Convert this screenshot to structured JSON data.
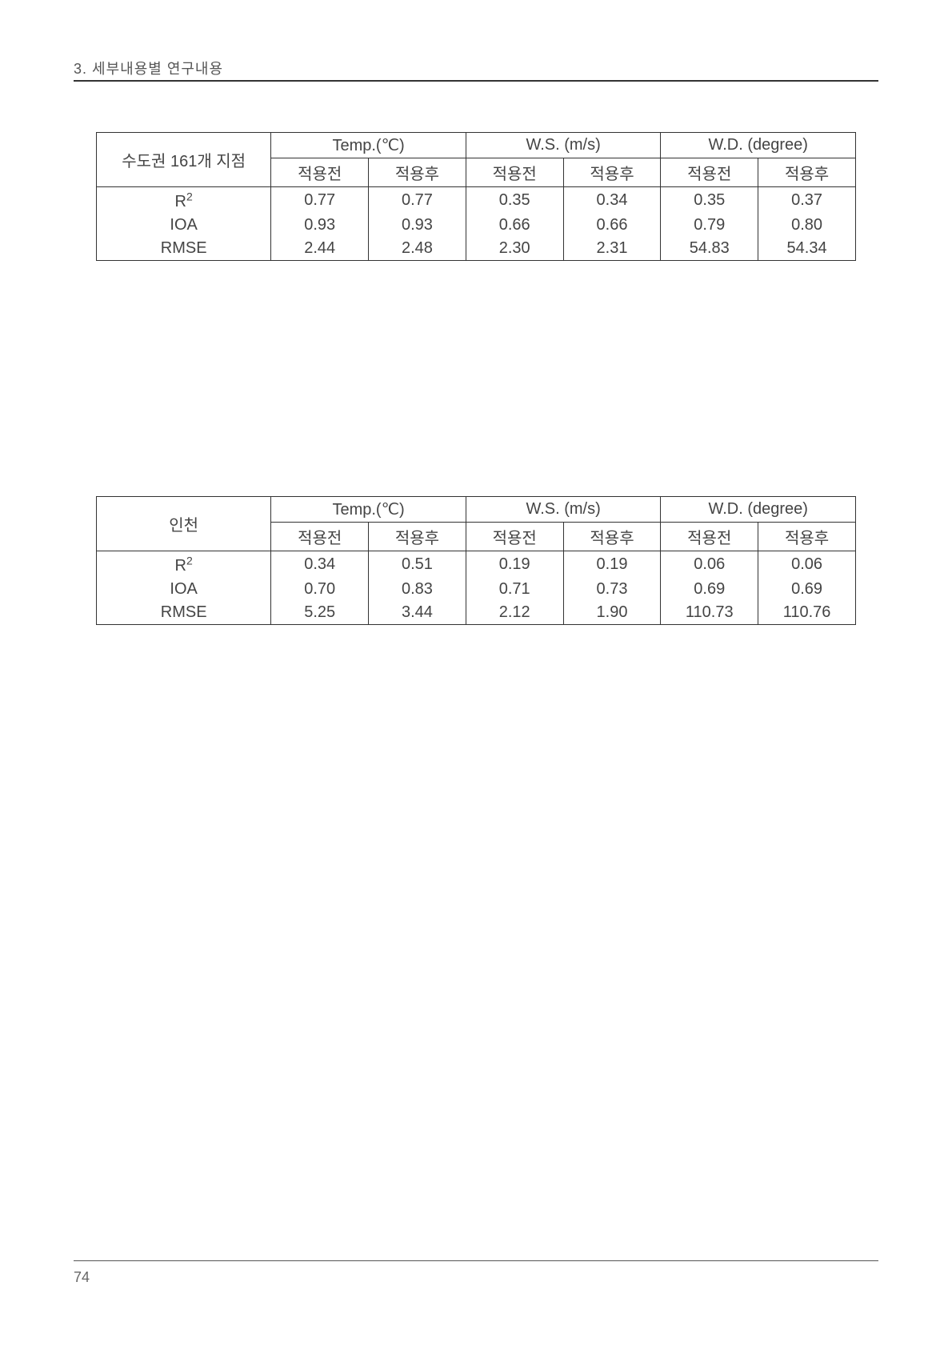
{
  "page": {
    "header": "3. 세부내용별 연구내용",
    "pageNumber": "74"
  },
  "table1": {
    "rowHeader": "수도권 161개 지점",
    "groups": [
      {
        "label": "Temp.(℃)"
      },
      {
        "label": "W.S. (m/s)"
      },
      {
        "label": "W.D. (degree)"
      }
    ],
    "subheaders": [
      "적용전",
      "적용후",
      "적용전",
      "적용후",
      "적용전",
      "적용후"
    ],
    "rows": [
      {
        "label": "R²",
        "values": [
          "0.77",
          "0.77",
          "0.35",
          "0.34",
          "0.35",
          "0.37"
        ]
      },
      {
        "label": "IOA",
        "values": [
          "0.93",
          "0.93",
          "0.66",
          "0.66",
          "0.79",
          "0.80"
        ]
      },
      {
        "label": "RMSE",
        "values": [
          "2.44",
          "2.48",
          "2.30",
          "2.31",
          "54.83",
          "54.34"
        ]
      }
    ]
  },
  "table2": {
    "rowHeader": "인천",
    "groups": [
      {
        "label": "Temp.(℃)"
      },
      {
        "label": "W.S. (m/s)"
      },
      {
        "label": "W.D. (degree)"
      }
    ],
    "subheaders": [
      "적용전",
      "적용후",
      "적용전",
      "적용후",
      "적용전",
      "적용후"
    ],
    "rows": [
      {
        "label": "R²",
        "values": [
          "0.34",
          "0.51",
          "0.19",
          "0.19",
          "0.06",
          "0.06"
        ]
      },
      {
        "label": "IOA",
        "values": [
          "0.70",
          "0.83",
          "0.71",
          "0.73",
          "0.69",
          "0.69"
        ]
      },
      {
        "label": "RMSE",
        "values": [
          "5.25",
          "3.44",
          "2.12",
          "1.90",
          "110.73",
          "110.76"
        ]
      }
    ]
  }
}
